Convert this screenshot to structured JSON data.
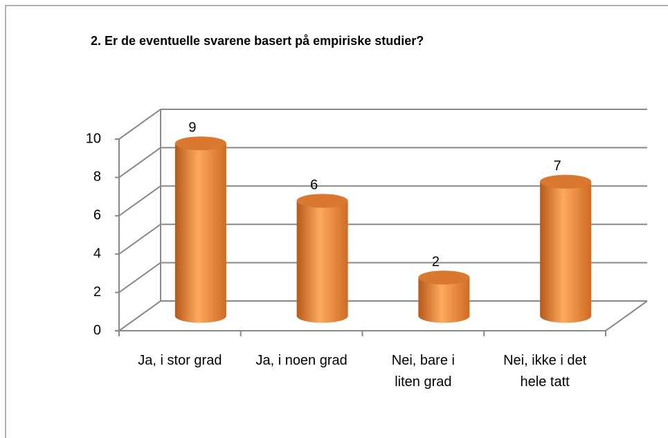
{
  "chart_data": {
    "type": "bar",
    "title": "2. Er de eventuelle svarene basert på empiriske studier?",
    "categories": [
      "Ja, i stor grad",
      "Ja, i noen grad",
      "Nei, bare i liten grad",
      "Nei, ikke i det hele tatt"
    ],
    "values": [
      9,
      6,
      2,
      7
    ],
    "color": "#f08a30",
    "ylim": [
      0,
      10
    ],
    "yticks": [
      0,
      2,
      4,
      6,
      8,
      10
    ],
    "grid": true
  }
}
